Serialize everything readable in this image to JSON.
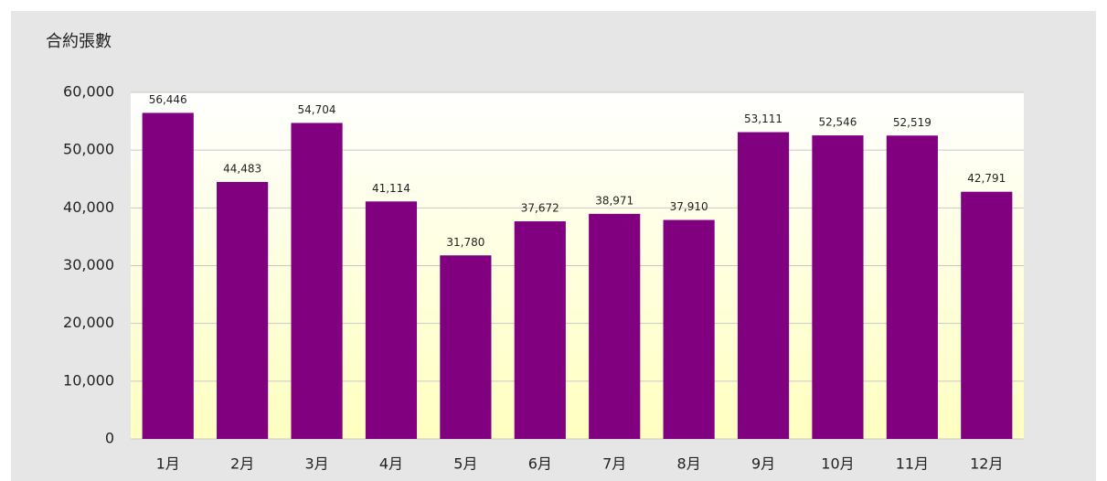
{
  "chart_data": {
    "type": "bar",
    "title": "合約張數",
    "categories": [
      "1月",
      "2月",
      "3月",
      "4月",
      "5月",
      "6月",
      "7月",
      "8月",
      "9月",
      "10月",
      "11月",
      "12月"
    ],
    "values": [
      56446,
      44483,
      54704,
      41114,
      31780,
      37672,
      38971,
      37910,
      53111,
      52546,
      52519,
      42791
    ],
    "value_labels": [
      "56,446",
      "44,483",
      "54,704",
      "41,114",
      "31,780",
      "37,672",
      "38,971",
      "37,910",
      "53,111",
      "52,546",
      "52,519",
      "42,791"
    ],
    "color": "#800080",
    "ylim": [
      0,
      60000
    ],
    "yticks": [
      0,
      {
        "value": 10000,
        "label": "10,000"
      },
      {
        "value": 20000,
        "label": "20,000"
      },
      {
        "value": 30000,
        "label": "30,000"
      },
      {
        "value": 40000,
        "label": "40,000"
      },
      {
        "value": 50000,
        "label": "50,000"
      },
      {
        "value": 60000,
        "label": "60,000"
      }
    ],
    "grid": true
  }
}
